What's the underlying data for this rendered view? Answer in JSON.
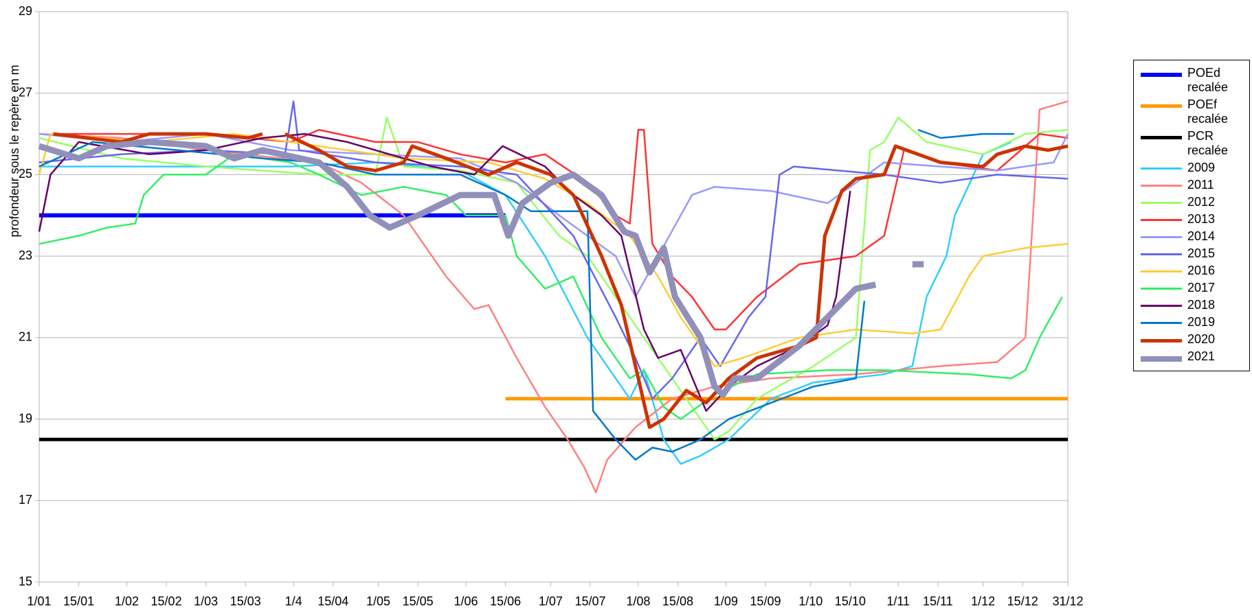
{
  "chart_data": {
    "type": "line",
    "y_label": "profondeur sous le repère en m",
    "xlim": [
      1,
      365
    ],
    "ylim": [
      15,
      29
    ],
    "yticks": [
      15,
      17,
      19,
      21,
      23,
      25,
      27,
      29
    ],
    "xticks": [
      {
        "value": 1,
        "label": "1/01"
      },
      {
        "value": 15,
        "label": "15/01"
      },
      {
        "value": 32,
        "label": "1/02"
      },
      {
        "value": 46,
        "label": "15/02"
      },
      {
        "value": 60,
        "label": "1/03"
      },
      {
        "value": 74,
        "label": "15/03"
      },
      {
        "value": 91,
        "label": "1/4"
      },
      {
        "value": 105,
        "label": "15/04"
      },
      {
        "value": 121,
        "label": "1/05"
      },
      {
        "value": 135,
        "label": "15/05"
      },
      {
        "value": 152,
        "label": "1/06"
      },
      {
        "value": 166,
        "label": "15/06"
      },
      {
        "value": 182,
        "label": "1/07"
      },
      {
        "value": 196,
        "label": "15/07"
      },
      {
        "value": 213,
        "label": "1/08"
      },
      {
        "value": 227,
        "label": "15/08"
      },
      {
        "value": 244,
        "label": "1/09"
      },
      {
        "value": 258,
        "label": "15/09"
      },
      {
        "value": 274,
        "label": "1/10"
      },
      {
        "value": 288,
        "label": "15/10"
      },
      {
        "value": 305,
        "label": "1/11"
      },
      {
        "value": 319,
        "label": "15/11"
      },
      {
        "value": 335,
        "label": "1/12"
      },
      {
        "value": 349,
        "label": "15/12"
      },
      {
        "value": 365,
        "label": "31/12"
      }
    ],
    "grid": true,
    "legend": "right",
    "series": [
      {
        "name": "POEd recalée",
        "color": "#0000ff",
        "line_width": 6,
        "x": [
          1,
          166
        ],
        "values": [
          24,
          24
        ]
      },
      {
        "name": "POEf recalée",
        "color": "#ff9900",
        "line_width": 5,
        "x": [
          166,
          365
        ],
        "values": [
          19.5,
          19.5
        ]
      },
      {
        "name": "PCR recalée",
        "color": "#000000",
        "line_width": 5,
        "x": [
          1,
          365
        ],
        "values": [
          18.5,
          18.5
        ]
      },
      {
        "name": "2009",
        "color": "#33ccff",
        "line_width": 2.5,
        "x": [
          1,
          60,
          90,
          120,
          150,
          166,
          180,
          195,
          210,
          215,
          222,
          228,
          235,
          245,
          260,
          275,
          300,
          310,
          315,
          322,
          325,
          335,
          345
        ],
        "values": [
          25.2,
          25.2,
          25.2,
          25.3,
          25.1,
          24.5,
          23,
          21,
          19.5,
          20.2,
          18.5,
          17.9,
          18.1,
          18.5,
          19.5,
          19.9,
          20.1,
          20.3,
          22,
          23,
          24,
          25.5,
          25.8
        ]
      },
      {
        "name": "2011",
        "color": "#ff8080",
        "line_width": 2.5,
        "x": [
          1,
          30,
          60,
          100,
          115,
          130,
          145,
          155,
          160,
          170,
          180,
          188,
          194,
          198,
          202,
          212,
          225,
          240,
          260,
          290,
          320,
          340,
          350,
          355,
          365
        ],
        "values": [
          26,
          25.9,
          25.6,
          25.3,
          24.8,
          24,
          22.5,
          21.7,
          21.8,
          20.5,
          19.3,
          18.5,
          17.8,
          17.2,
          18,
          18.8,
          19.5,
          19.8,
          20,
          20.1,
          20.3,
          20.4,
          21,
          26.6,
          26.8
        ]
      },
      {
        "name": "2012",
        "color": "#99ff66",
        "line_width": 2.5,
        "x": [
          1,
          30,
          60,
          100,
          120,
          124,
          130,
          150,
          170,
          185,
          195,
          205,
          215,
          225,
          235,
          240,
          245,
          255,
          275,
          290,
          295,
          300,
          305,
          315,
          335,
          350,
          365
        ],
        "values": [
          25.9,
          25.4,
          25.2,
          25,
          25,
          26.4,
          25.2,
          25.1,
          24.8,
          23.5,
          23,
          22,
          21,
          20,
          19,
          18.5,
          18.7,
          19.5,
          20.3,
          21,
          25.6,
          25.8,
          26.4,
          25.8,
          25.5,
          26,
          26.1
        ]
      },
      {
        "name": "2013",
        "color": "#ff3333",
        "line_width": 2.5,
        "x": [
          5,
          30,
          60,
          90,
          100,
          120,
          135,
          150,
          166,
          180,
          195,
          205,
          210,
          213,
          215,
          218,
          225,
          232,
          240,
          244,
          255,
          270,
          290,
          300,
          307,
          320,
          340,
          355,
          365
        ],
        "values": [
          26,
          26,
          26,
          25.8,
          26.1,
          25.8,
          25.8,
          25.5,
          25.3,
          25.5,
          24.8,
          24,
          23.8,
          26.1,
          26.1,
          23.3,
          22.5,
          22,
          21.2,
          21.2,
          22,
          22.8,
          23,
          23.5,
          25.6,
          25.3,
          25.1,
          26,
          25.9
        ]
      },
      {
        "name": "2014",
        "color": "#9999ff",
        "line_width": 2.5,
        "x": [
          1,
          30,
          60,
          90,
          120,
          150,
          170,
          185,
          195,
          205,
          212,
          220,
          232,
          240,
          260,
          280,
          300,
          320,
          340,
          360,
          365
        ],
        "values": [
          26,
          25.8,
          26,
          25.6,
          25.5,
          25.4,
          24.8,
          24,
          23.5,
          23,
          22,
          23,
          24.5,
          24.7,
          24.6,
          24.3,
          25.3,
          25.2,
          25.1,
          25.3,
          26
        ]
      },
      {
        "name": "2015",
        "color": "#6666ee",
        "line_width": 2.5,
        "x": [
          1,
          30,
          60,
          88,
          91,
          93,
          120,
          150,
          170,
          190,
          205,
          212,
          218,
          225,
          235,
          242,
          252,
          258,
          263,
          268,
          300,
          320,
          340,
          365
        ],
        "values": [
          25.3,
          25.5,
          25.6,
          25.5,
          26.8,
          25.6,
          25.3,
          25.2,
          25,
          23.5,
          21.5,
          20.5,
          19.5,
          20,
          21,
          20.3,
          21.5,
          22,
          25,
          25.2,
          25,
          24.8,
          25,
          24.9
        ]
      },
      {
        "name": "2016",
        "color": "#ffcc33",
        "line_width": 2.5,
        "x": [
          1,
          5,
          40,
          70,
          110,
          130,
          160,
          180,
          195,
          210,
          220,
          228,
          240,
          250,
          270,
          290,
          310,
          320,
          330,
          335,
          350,
          365
        ],
        "values": [
          25,
          26,
          25.8,
          26,
          25.6,
          25.4,
          25.3,
          24.9,
          24.3,
          23.5,
          22.5,
          21.5,
          20.3,
          20.5,
          21,
          21.2,
          21.1,
          21.2,
          22.5,
          23,
          23.2,
          23.3
        ]
      },
      {
        "name": "2017",
        "color": "#33ee66",
        "line_width": 2.5,
        "x": [
          1,
          15,
          25,
          35,
          38,
          45,
          60,
          70,
          90,
          100,
          115,
          130,
          145,
          152,
          166,
          170,
          180,
          190,
          200,
          210,
          215,
          222,
          228,
          240,
          255,
          280,
          300,
          330,
          345,
          350,
          355,
          363
        ],
        "values": [
          23.3,
          23.5,
          23.7,
          23.8,
          24.5,
          25,
          25,
          25.5,
          25.3,
          25,
          24.5,
          24.7,
          24.5,
          24,
          24,
          23,
          22.2,
          22.5,
          21,
          20,
          20.2,
          19.3,
          19,
          19.6,
          20.1,
          20.2,
          20.2,
          20.1,
          20,
          20.2,
          21,
          22
        ]
      },
      {
        "name": "2018",
        "color": "#660066",
        "line_width": 2.5,
        "x": [
          1,
          5,
          15,
          40,
          60,
          80,
          95,
          110,
          125,
          140,
          155,
          165,
          180,
          190,
          200,
          207,
          215,
          220,
          228,
          237,
          245,
          255,
          270,
          280,
          283,
          288
        ],
        "values": [
          23.6,
          25,
          25.8,
          25.5,
          25.6,
          25.9,
          26,
          25.8,
          25.5,
          25.2,
          25,
          25.7,
          25.2,
          24.5,
          24,
          23.5,
          21.2,
          20.5,
          20.7,
          19.2,
          19.8,
          20.3,
          20.8,
          21.3,
          22,
          24.6
        ]
      },
      {
        "name": "2019",
        "color": "#0077cc",
        "line_width": 2.5,
        "x": [
          1,
          20,
          50,
          80,
          100,
          120,
          150,
          166,
          175,
          195,
          197,
          205,
          212,
          218,
          225,
          235,
          245,
          260,
          275,
          290,
          293,
          300,
          312,
          320,
          335,
          346
        ],
        "values": [
          25.2,
          25.8,
          25.6,
          25.4,
          25.3,
          25,
          25,
          24.5,
          24.1,
          24.1,
          19.2,
          18.5,
          18,
          18.3,
          18.2,
          18.5,
          19,
          19.4,
          19.8,
          20,
          21.9,
          null,
          26.1,
          25.9,
          26,
          26
        ]
      },
      {
        "name": "2020",
        "color": "#cc3300",
        "line_width": 5,
        "x": [
          6,
          30,
          40,
          60,
          75,
          80,
          84,
          88,
          100,
          110,
          120,
          130,
          133,
          145,
          160,
          170,
          182,
          190,
          200,
          207,
          213,
          217,
          222,
          230,
          237,
          245,
          255,
          270,
          276,
          279,
          285,
          290,
          300,
          304,
          320,
          335,
          340,
          350,
          358,
          365
        ],
        "values": [
          26,
          25.8,
          26,
          26,
          25.9,
          26,
          null,
          26,
          25.6,
          25.2,
          25.1,
          25.3,
          25.7,
          25.4,
          25,
          25.3,
          25,
          24.5,
          23,
          21.8,
          20,
          18.8,
          19,
          19.7,
          19.4,
          20,
          20.5,
          20.8,
          21,
          23.5,
          24.6,
          24.9,
          25,
          25.7,
          25.3,
          25.2,
          25.5,
          25.7,
          25.6,
          25.7
        ]
      },
      {
        "name": "2021",
        "color": "#9090bb",
        "line_width": 9,
        "x": [
          1,
          15,
          25,
          40,
          60,
          70,
          80,
          100,
          110,
          118,
          125,
          135,
          150,
          162,
          167,
          172,
          182,
          190,
          200,
          208,
          212,
          217,
          222,
          226,
          235,
          240,
          243,
          247,
          255,
          270,
          280,
          290,
          297,
          303,
          310,
          314
        ],
        "values": [
          25.7,
          25.4,
          25.7,
          25.8,
          25.7,
          25.4,
          25.6,
          25.3,
          24.7,
          24,
          23.7,
          24,
          24.5,
          24.5,
          23.5,
          24.3,
          24.8,
          25,
          24.5,
          23.6,
          23.5,
          22.6,
          23.2,
          22,
          21,
          19.8,
          19.6,
          20,
          20,
          20.8,
          21.5,
          22.2,
          22.3,
          null,
          22.8,
          22.8
        ]
      }
    ]
  }
}
